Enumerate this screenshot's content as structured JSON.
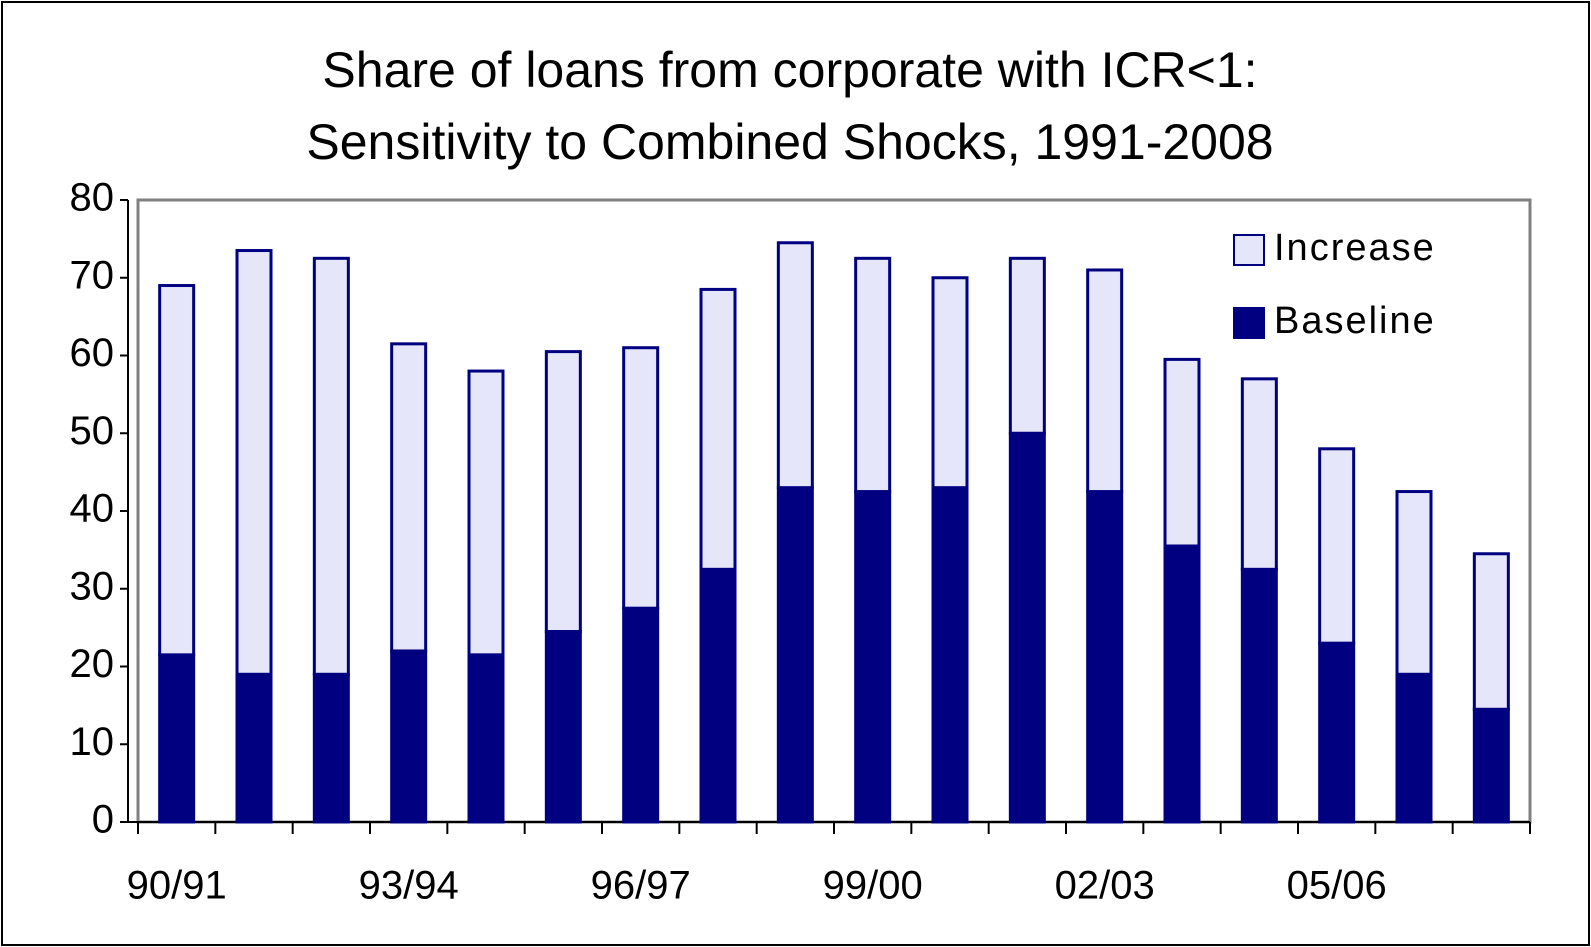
{
  "chart_data": {
    "type": "stacked-bar",
    "title": [
      "Share of loans from corporate with ICR<1:",
      "Sensitivity to Combined Shocks, 1991-2008"
    ],
    "categories": [
      "90/91",
      null,
      null,
      "93/94",
      null,
      null,
      "96/97",
      null,
      null,
      "99/00",
      null,
      null,
      "02/03",
      null,
      null,
      "05/06",
      null,
      null
    ],
    "series": [
      {
        "name": "Baseline",
        "color": "#000080",
        "values": [
          21.5,
          19,
          19,
          22,
          21.5,
          24.5,
          27.5,
          32.5,
          43,
          42.5,
          43,
          50,
          42.5,
          35.5,
          32.5,
          23,
          19,
          14.5
        ]
      },
      {
        "name": "Increase",
        "color": "#e6e6fa",
        "values": [
          47.5,
          54.5,
          53.5,
          39.5,
          36.5,
          36,
          33.5,
          36,
          31.5,
          30,
          27,
          22.5,
          28.5,
          24,
          24.5,
          25,
          23.5,
          20
        ]
      }
    ],
    "ylim": [
      0,
      80
    ],
    "yticks": [
      0,
      10,
      20,
      30,
      40,
      50,
      60,
      70,
      80
    ],
    "grid": false,
    "legend": "top-right"
  }
}
